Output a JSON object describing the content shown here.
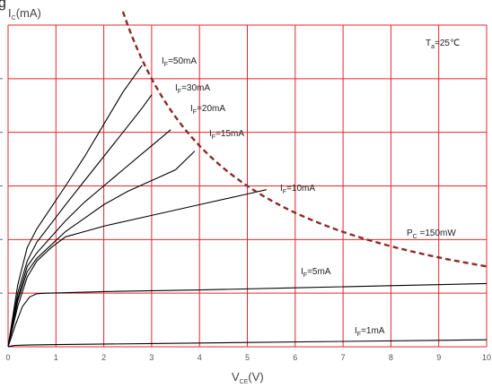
{
  "chart_data": {
    "type": "line",
    "title": "",
    "cut_off_text": "g",
    "xlabel": {
      "main": "V",
      "sub": "CE",
      "unit": "(V)"
    },
    "ylabel": {
      "main": "I",
      "sub": "C",
      "unit": "(mA)"
    },
    "xlim": [
      0,
      10
    ],
    "ylim": [
      0,
      60
    ],
    "x_ticks": [
      "0",
      "1",
      "2",
      "3",
      "4",
      "5",
      "6",
      "7",
      "8",
      "9",
      "10"
    ],
    "grid": true,
    "grid_color": "#e8242c",
    "curve_color": "#000000",
    "limit_color": "#8b2a2a",
    "ambient_label": {
      "main": "T",
      "sub": "a",
      "rest": "=25℃"
    },
    "series": [
      {
        "name": "IF=50mA",
        "label": {
          "main": "I",
          "sub": "F",
          "rest": "=50mA"
        },
        "x": [
          0,
          0.2,
          0.4,
          0.6,
          0.9,
          1.2,
          1.6,
          2.0,
          2.4,
          2.8
        ],
        "y": [
          0,
          11.5,
          18.5,
          22,
          26,
          30,
          35.5,
          41.5,
          47.5,
          52.5
        ]
      },
      {
        "name": "IF=30mA",
        "label": {
          "main": "I",
          "sub": "F",
          "rest": "=30mA"
        },
        "x": [
          0,
          0.2,
          0.4,
          0.6,
          0.9,
          1.2,
          1.6,
          2.0,
          2.4,
          2.8,
          3.0
        ],
        "y": [
          0,
          10,
          16,
          19.5,
          23,
          26.5,
          31,
          35.5,
          40,
          44.5,
          47
        ]
      },
      {
        "name": "IF=20mA",
        "label": {
          "main": "I",
          "sub": "F",
          "rest": "=20mA"
        },
        "x": [
          0,
          0.2,
          0.4,
          0.6,
          0.9,
          1.2,
          1.6,
          2.0,
          2.4,
          2.8,
          3.2,
          3.4
        ],
        "y": [
          0,
          9,
          15,
          17.5,
          20.5,
          23.5,
          27,
          30,
          33,
          36,
          39,
          40.5
        ]
      },
      {
        "name": "IF=15mA",
        "label": {
          "main": "I",
          "sub": "F",
          "rest": "=15mA"
        },
        "x": [
          0,
          0.2,
          0.4,
          0.6,
          0.9,
          1.2,
          1.6,
          2.0,
          2.5,
          3.0,
          3.5,
          3.9
        ],
        "y": [
          0,
          8.5,
          14,
          16.5,
          19,
          21.5,
          24,
          26.5,
          29,
          31,
          33,
          36.5
        ]
      },
      {
        "name": "IF=10mA",
        "label": {
          "main": "I",
          "sub": "F",
          "rest": "=10mA"
        },
        "x": [
          0,
          0.2,
          0.4,
          0.6,
          0.9,
          1.2,
          1.6,
          2.0,
          3.0,
          4.0,
          5.0,
          5.4
        ],
        "y": [
          0,
          7.5,
          13,
          16,
          18.5,
          20.5,
          21.5,
          22.5,
          24.5,
          26.5,
          28.5,
          29.3
        ]
      },
      {
        "name": "IF=5mA",
        "label": {
          "main": "I",
          "sub": "F",
          "rest": "=5mA"
        },
        "x": [
          0,
          0.15,
          0.3,
          0.45,
          0.6,
          0.8,
          1.0,
          2.0,
          4.0,
          6.0,
          8.0,
          10.0
        ],
        "y": [
          0,
          4,
          7.5,
          9.3,
          9.9,
          10.0,
          10.05,
          10.3,
          10.6,
          11.0,
          11.4,
          11.8
        ]
      },
      {
        "name": "IF=1mA",
        "label": {
          "main": "I",
          "sub": "F",
          "rest": "=1mA"
        },
        "x": [
          0,
          0.05,
          0.1,
          0.15,
          0.3,
          0.5,
          1.0,
          3.0,
          5.0,
          7.0,
          9.0,
          10.0
        ],
        "y": [
          0,
          0.12,
          0.2,
          0.25,
          0.3,
          0.35,
          0.4,
          0.6,
          0.8,
          1.0,
          1.2,
          1.3
        ]
      }
    ],
    "limit_curve": {
      "name": "PC=150mW",
      "label": {
        "main": "P",
        "sub": "C",
        "rest": " =150mW"
      },
      "power_mW": 150,
      "x_range": [
        2.4,
        10
      ]
    }
  }
}
